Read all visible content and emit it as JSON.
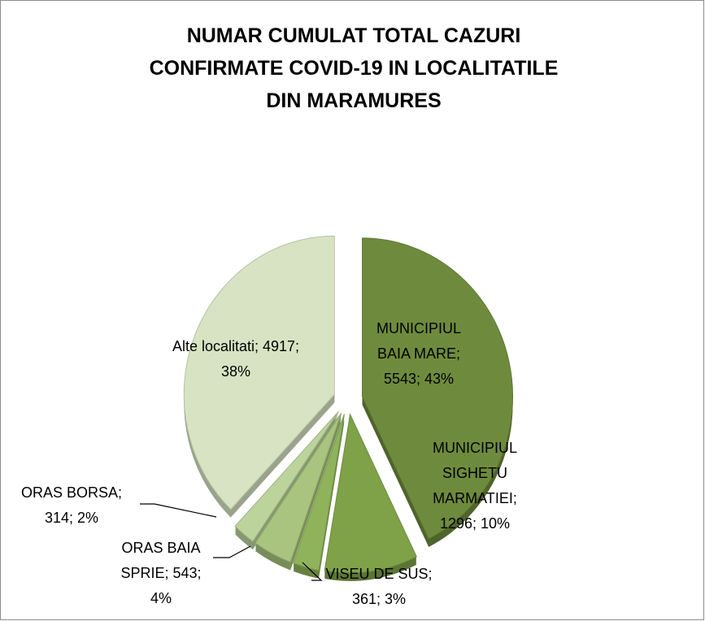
{
  "chart_data": {
    "type": "pie",
    "title": "NUMAR CUMULAT TOTAL CAZURI\nCONFIRMATE COVID-19 IN LOCALITATILE\nDIN MARAMURES",
    "values": [
      5543,
      1296,
      361,
      543,
      314,
      4917
    ],
    "value_labels": [
      "MUNICIPIUL BAIA MARE; 5543; 43%",
      "MUNICIPIUL SIGHETU MARMATIEI; 1296; 10%",
      "VISEU DE SUS; 361; 3%",
      "ORAS BAIA SPRIE; 543; 4%",
      "ORAS BORSA; 314; 2%",
      "Alte localitati; 4917; 38%"
    ],
    "colors": [
      "#6e8b3d",
      "#7fa248",
      "#8fb35a",
      "#a8c47e",
      "#bcd39c",
      "#d7e3c2"
    ]
  }
}
